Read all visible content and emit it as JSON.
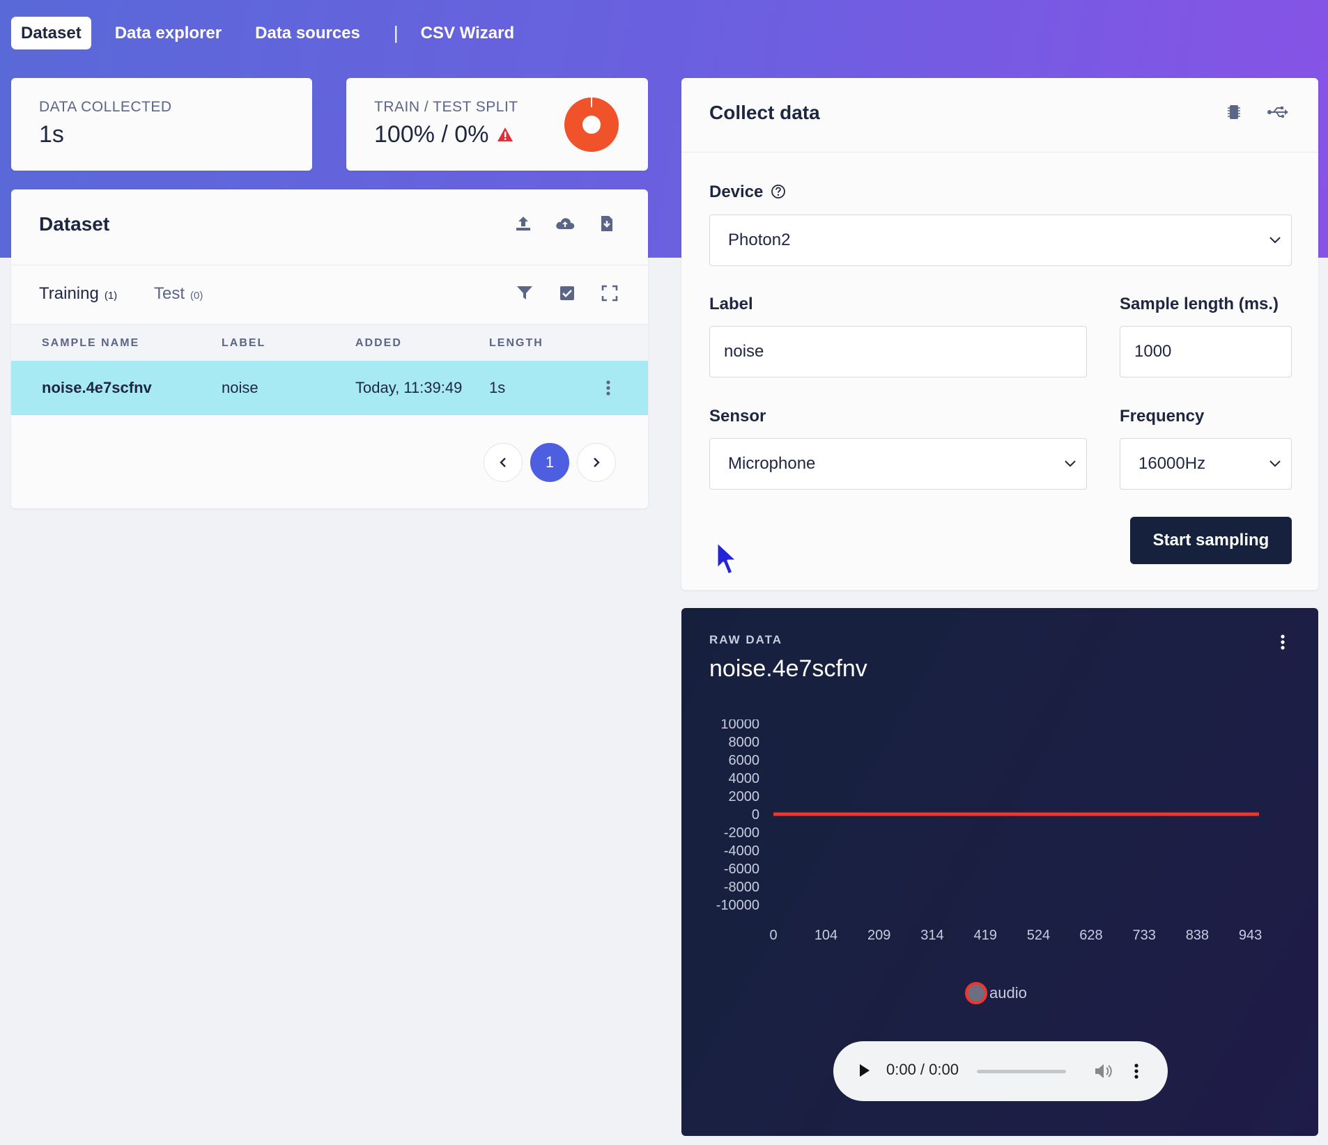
{
  "nav": {
    "tabs": [
      {
        "label": "Dataset",
        "active": true
      },
      {
        "label": "Data explorer",
        "active": false
      },
      {
        "label": "Data sources",
        "active": false
      },
      {
        "label": "CSV Wizard",
        "active": false
      }
    ],
    "separator": "|"
  },
  "stats": {
    "collected_label": "DATA COLLECTED",
    "collected_value": "1s",
    "split_label": "TRAIN / TEST SPLIT",
    "split_value": "100% / 0%",
    "split_train_percent": 100,
    "warning_icon": "warning-triangle-icon",
    "donut_color": "#f0522a"
  },
  "dataset": {
    "title": "Dataset",
    "header_icons": [
      "upload-icon",
      "cloud-upload-icon",
      "export-icon"
    ],
    "subtabs": [
      {
        "label": "Training",
        "count": "(1)",
        "active": true
      },
      {
        "label": "Test",
        "count": "(0)",
        "active": false
      }
    ],
    "toolbar_icons": [
      "filter-icon",
      "select-icon",
      "expand-icon"
    ],
    "columns": [
      "SAMPLE NAME",
      "LABEL",
      "ADDED",
      "LENGTH"
    ],
    "rows": [
      {
        "name": "noise.4e7scfnv",
        "label": "noise",
        "added": "Today, 11:39:49",
        "length": "1s"
      }
    ],
    "pagination": {
      "current": "1"
    }
  },
  "collect": {
    "title": "Collect data",
    "device_label": "Device",
    "device_value": "Photon2",
    "label_label": "Label",
    "label_value": "noise",
    "sample_length_label": "Sample length (ms.)",
    "sample_length_value": "1000",
    "sensor_label": "Sensor",
    "sensor_value": "Microphone",
    "frequency_label": "Frequency",
    "frequency_value": "16000Hz",
    "start_button": "Start sampling"
  },
  "raw": {
    "kicker": "RAW DATA",
    "title": "noise.4e7scfnv",
    "audio_time": "0:00 / 0:00"
  },
  "chart_data": {
    "type": "line",
    "title": "",
    "xlabel": "",
    "ylabel": "",
    "ylim": [
      -10000,
      10000
    ],
    "yticks": [
      10000,
      8000,
      6000,
      4000,
      2000,
      0,
      -2000,
      -4000,
      -6000,
      -8000,
      -10000
    ],
    "xticks": [
      0,
      104,
      209,
      314,
      419,
      524,
      628,
      733,
      838,
      943
    ],
    "xlim": [
      0,
      1000
    ],
    "series": [
      {
        "name": "audio",
        "color": "#f0362c",
        "x": [
          0,
          100,
          200,
          300,
          400,
          500,
          600,
          700,
          800,
          900,
          960
        ],
        "y": [
          0,
          0,
          0,
          0,
          0,
          0,
          0,
          0,
          0,
          0,
          0
        ]
      }
    ],
    "legend": "bottom-center",
    "grid": false
  }
}
